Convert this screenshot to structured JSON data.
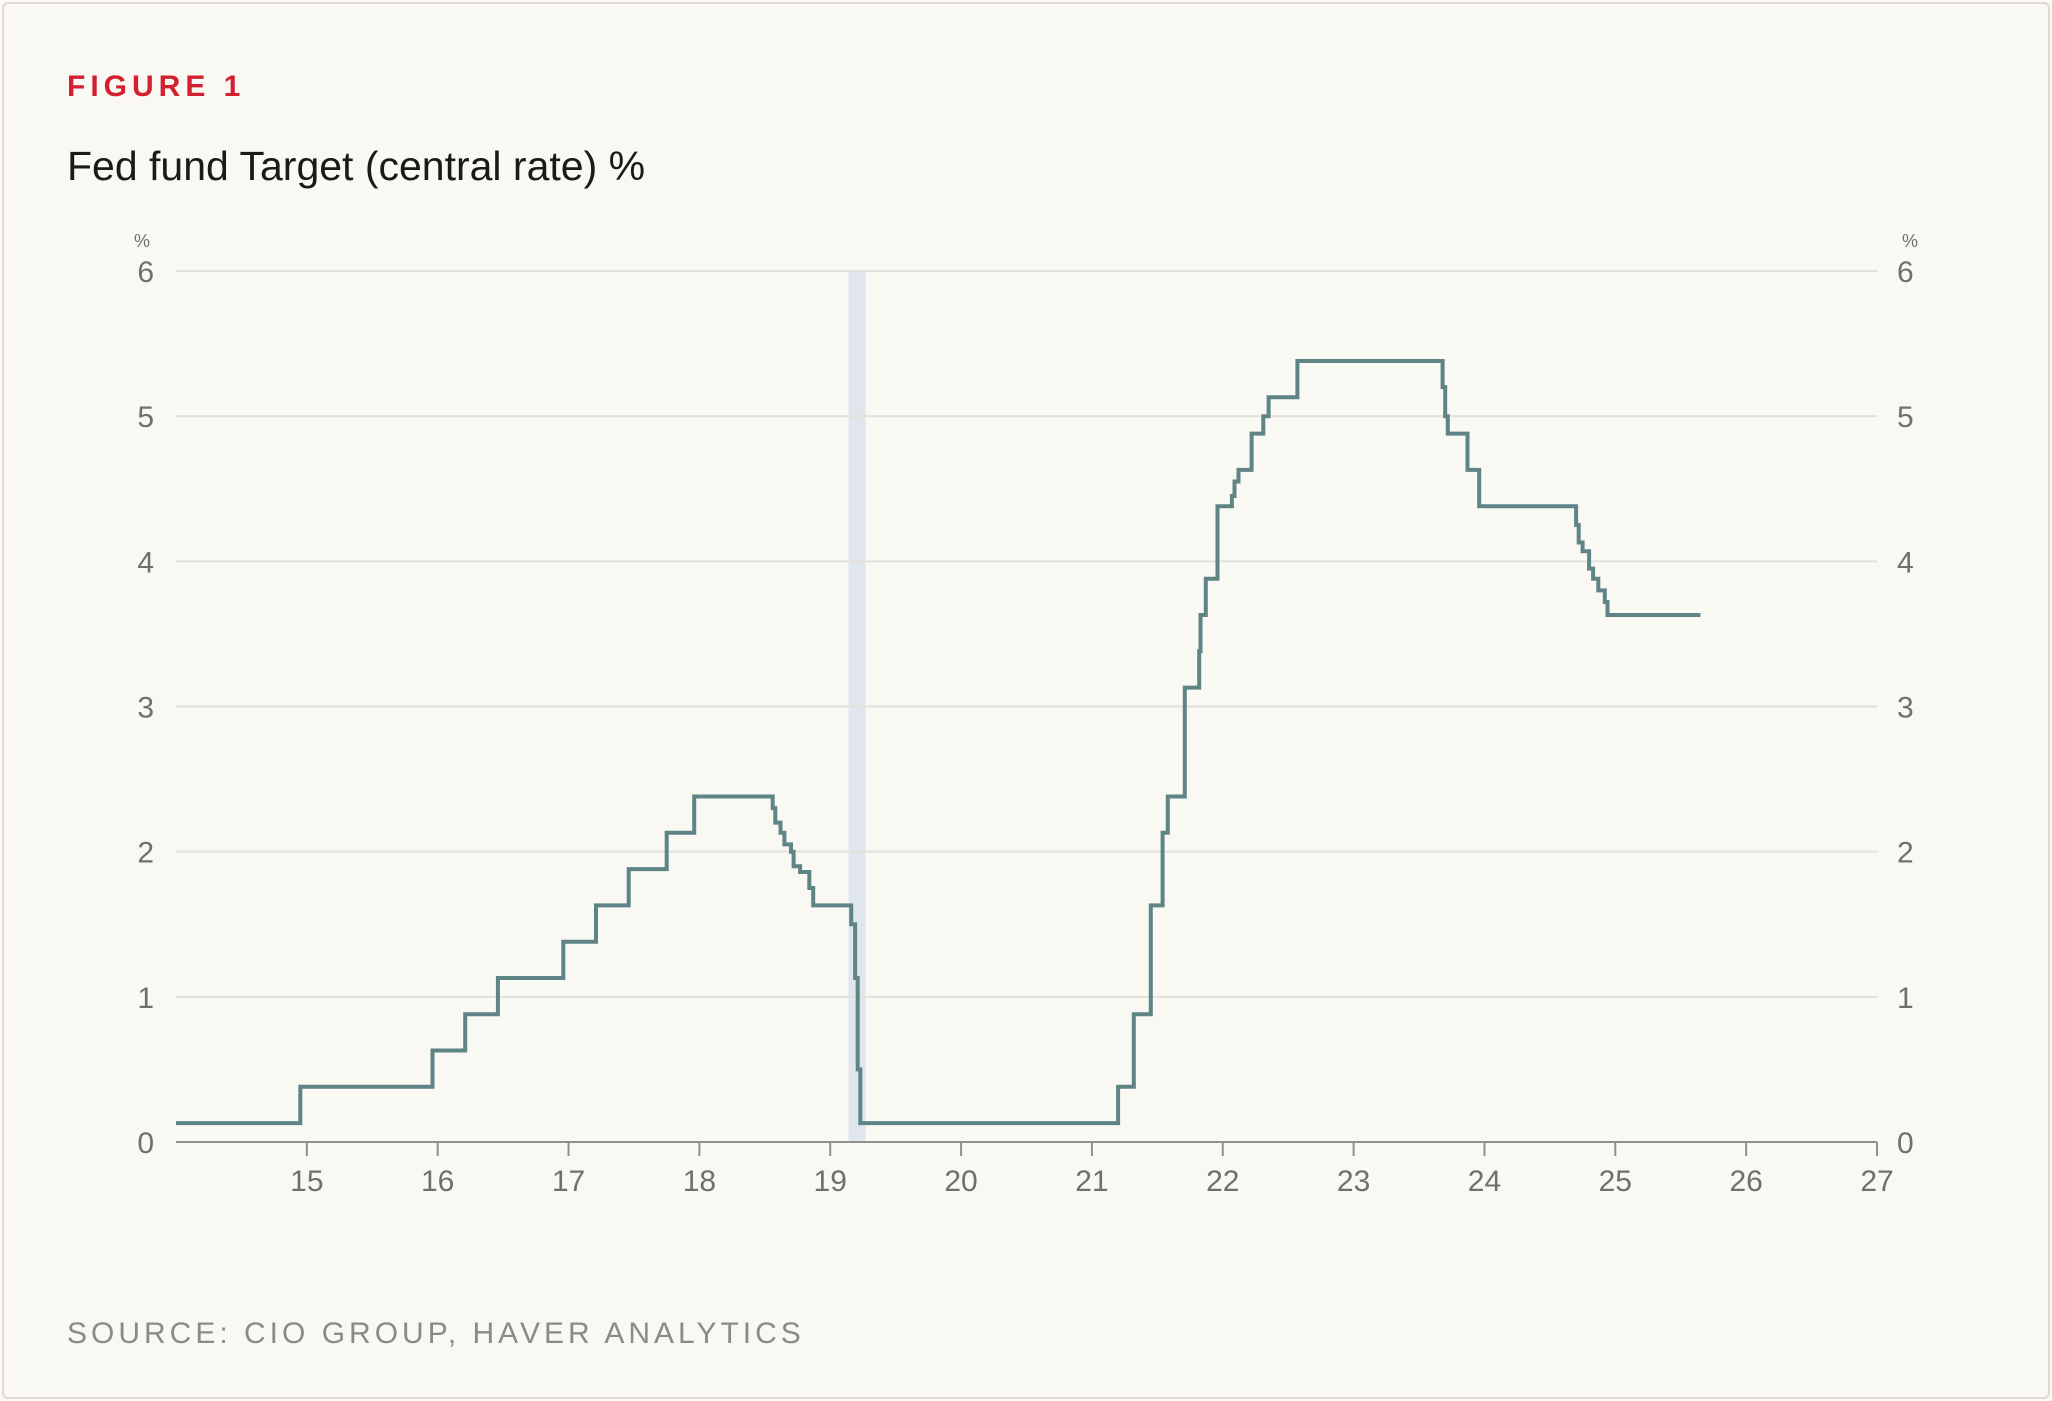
{
  "figure_label": "FIGURE 1",
  "title": "Fed fund Target (central rate) %",
  "source": "SOURCE: CIO GROUP, HAVER ANALYTICS",
  "colors": {
    "line": "#5e8486",
    "recession_band": "#dfe6ee",
    "grid": "#e3e1dc",
    "axis": "#8f8f8f",
    "figure_label": "#d32030"
  },
  "chart_data": {
    "type": "line",
    "title": "Fed fund Target (central rate) %",
    "xlabel": "",
    "ylabel": "%",
    "ylabel_right": "%",
    "xlim": [
      14.0,
      27.0
    ],
    "ylim": [
      0,
      6
    ],
    "x_ticks": [
      "15",
      "16",
      "17",
      "18",
      "19",
      "20",
      "21",
      "22",
      "23",
      "24",
      "25",
      "26",
      "27"
    ],
    "y_ticks": [
      "0",
      "1",
      "2",
      "3",
      "4",
      "5",
      "6"
    ],
    "grid": true,
    "shaded_periods": [
      [
        19.14,
        19.27
      ]
    ],
    "series": [
      {
        "step": true,
        "x": [
          14.0,
          14.95,
          15.96,
          16.21,
          16.46,
          16.96,
          17.21,
          17.46,
          17.75,
          17.96,
          18.56,
          18.58,
          18.62,
          18.65,
          18.7,
          18.72,
          18.77,
          18.84,
          18.87,
          19.16,
          19.19,
          19.21,
          19.23,
          20.0,
          21.2,
          21.32,
          21.45,
          21.54,
          21.58,
          21.71,
          21.82,
          21.83,
          21.87,
          21.96,
          22.07,
          22.09,
          22.12,
          22.22,
          22.31,
          22.35,
          22.57,
          23.68,
          23.7,
          23.72,
          23.87,
          23.96,
          24.7,
          24.72,
          24.75,
          24.8,
          24.83,
          24.87,
          24.92,
          24.94,
          25.65
        ],
        "y": [
          0.13,
          0.38,
          0.63,
          0.88,
          1.13,
          1.38,
          1.63,
          1.88,
          2.13,
          2.38,
          2.3,
          2.2,
          2.13,
          2.05,
          2.0,
          1.9,
          1.86,
          1.75,
          1.63,
          1.5,
          1.13,
          0.5,
          0.13,
          0.13,
          0.38,
          0.88,
          1.63,
          2.13,
          2.38,
          3.13,
          3.38,
          3.63,
          3.88,
          4.38,
          4.45,
          4.55,
          4.63,
          4.88,
          5.0,
          5.13,
          5.38,
          5.2,
          5.0,
          4.88,
          4.63,
          4.38,
          4.25,
          4.13,
          4.07,
          3.95,
          3.88,
          3.8,
          3.72,
          3.63,
          3.63
        ]
      }
    ]
  }
}
